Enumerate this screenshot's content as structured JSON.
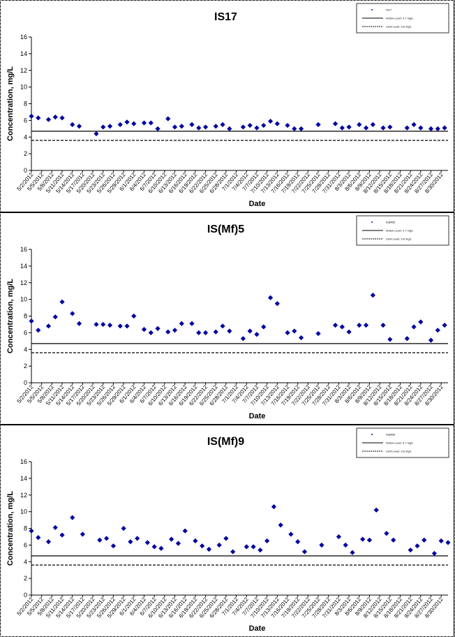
{
  "chart_data": [
    {
      "type": "scatter",
      "title": "IS17",
      "xlabel": "Date",
      "ylabel": "Concentration, mg/L",
      "ylim": [
        0,
        16
      ],
      "yticks": [
        0,
        2,
        4,
        6,
        8,
        10,
        12,
        14,
        16
      ],
      "x_tick_labels": [
        "5/2/2012",
        "5/5/2012",
        "5/8/2012",
        "5/11/2012",
        "5/14/2012",
        "5/17/2012",
        "5/20/2012",
        "5/23/2012",
        "5/26/2012",
        "5/29/2012",
        "6/1/2012",
        "6/4/2012",
        "6/7/2012",
        "6/10/2012",
        "6/13/2012",
        "6/16/2012",
        "6/19/2012",
        "6/22/2012",
        "6/25/2012",
        "6/28/2012",
        "7/1/2012",
        "7/4/2012",
        "7/7/2012",
        "7/10/2012",
        "7/13/2012",
        "7/16/2012",
        "7/19/2012",
        "7/22/2012",
        "7/25/2012",
        "7/28/2012",
        "7/31/2012",
        "8/3/2012",
        "8/6/2012",
        "8/9/2012",
        "8/12/2012",
        "8/15/2012",
        "8/18/2012",
        "8/21/2012",
        "8/24/2012",
        "8/27/2012",
        "8/30/2012"
      ],
      "x_range": [
        "2012-05-02",
        "2012-09-01"
      ],
      "series": [
        {
          "name": "IS17",
          "color": "#0000A0",
          "marker": "diamond",
          "points": [
            [
              "2012-05-02",
              6.5
            ],
            [
              "2012-05-04",
              6.3
            ],
            [
              "2012-05-07",
              6.1
            ],
            [
              "2012-05-09",
              6.4
            ],
            [
              "2012-05-11",
              6.3
            ],
            [
              "2012-05-14",
              5.5
            ],
            [
              "2012-05-16",
              5.3
            ],
            [
              "2012-05-21",
              4.4
            ],
            [
              "2012-05-23",
              5.2
            ],
            [
              "2012-05-25",
              5.3
            ],
            [
              "2012-05-28",
              5.5
            ],
            [
              "2012-05-30",
              5.8
            ],
            [
              "2012-06-01",
              5.6
            ],
            [
              "2012-06-04",
              5.7
            ],
            [
              "2012-06-06",
              5.7
            ],
            [
              "2012-06-08",
              5.0
            ],
            [
              "2012-06-11",
              6.2
            ],
            [
              "2012-06-13",
              5.2
            ],
            [
              "2012-06-15",
              5.3
            ],
            [
              "2012-06-18",
              5.5
            ],
            [
              "2012-06-20",
              5.1
            ],
            [
              "2012-06-22",
              5.2
            ],
            [
              "2012-06-25",
              5.3
            ],
            [
              "2012-06-27",
              5.5
            ],
            [
              "2012-06-29",
              5.0
            ],
            [
              "2012-07-03",
              5.2
            ],
            [
              "2012-07-05",
              5.4
            ],
            [
              "2012-07-07",
              5.1
            ],
            [
              "2012-07-09",
              5.4
            ],
            [
              "2012-07-11",
              5.9
            ],
            [
              "2012-07-13",
              5.6
            ],
            [
              "2012-07-16",
              5.4
            ],
            [
              "2012-07-18",
              5.0
            ],
            [
              "2012-07-20",
              5.0
            ],
            [
              "2012-07-25",
              5.5
            ],
            [
              "2012-07-30",
              5.6
            ],
            [
              "2012-08-01",
              5.1
            ],
            [
              "2012-08-03",
              5.2
            ],
            [
              "2012-08-06",
              5.5
            ],
            [
              "2012-08-08",
              5.1
            ],
            [
              "2012-08-10",
              5.5
            ],
            [
              "2012-08-13",
              5.1
            ],
            [
              "2012-08-15",
              5.2
            ],
            [
              "2012-08-20",
              5.1
            ],
            [
              "2012-08-22",
              5.5
            ],
            [
              "2012-08-24",
              5.1
            ],
            [
              "2012-08-27",
              5.0
            ],
            [
              "2012-08-29",
              5.0
            ],
            [
              "2012-08-31",
              5.1
            ]
          ]
        }
      ],
      "reference_lines": [
        {
          "name": "Action Level: 4.7 mg/L",
          "value": 4.7,
          "style": "solid"
        },
        {
          "name": "Limit Level: 3.6 mg/L",
          "value": 3.6,
          "style": "dashed"
        }
      ],
      "legend_position": "top-right",
      "grid": false
    },
    {
      "type": "scatter",
      "title": "IS(Mf)5",
      "xlabel": "Date",
      "ylabel": "Concentration, mg/L",
      "ylim": [
        0,
        16
      ],
      "yticks": [
        0,
        2,
        4,
        6,
        8,
        10,
        12,
        14,
        16
      ],
      "x_tick_labels": [
        "5/2/2012",
        "5/5/2012",
        "5/8/2012",
        "5/11/2012",
        "5/14/2012",
        "5/17/2012",
        "5/20/2012",
        "5/23/2012",
        "5/26/2012",
        "5/29/2012",
        "6/1/2012",
        "6/4/2012",
        "6/7/2012",
        "6/10/2012",
        "6/13/2012",
        "6/16/2012",
        "6/19/2012",
        "6/22/2012",
        "6/25/2012",
        "6/28/2012",
        "7/1/2012",
        "7/4/2012",
        "7/7/2012",
        "7/10/2012",
        "7/13/2012",
        "7/16/2012",
        "7/19/2012",
        "7/22/2012",
        "7/25/2012",
        "7/28/2012",
        "7/31/2012",
        "8/3/2012",
        "8/6/2012",
        "8/9/2012",
        "8/12/2012",
        "8/15/2012",
        "8/18/2012",
        "8/21/2012",
        "8/24/2012",
        "8/27/2012",
        "8/30/2012"
      ],
      "x_range": [
        "2012-05-02",
        "2012-09-01"
      ],
      "series": [
        {
          "name": "IS(Mf)5",
          "color": "#0000A0",
          "marker": "diamond",
          "points": [
            [
              "2012-05-02",
              7.4
            ],
            [
              "2012-05-04",
              6.3
            ],
            [
              "2012-05-07",
              6.8
            ],
            [
              "2012-05-09",
              7.9
            ],
            [
              "2012-05-11",
              9.7
            ],
            [
              "2012-05-14",
              8.3
            ],
            [
              "2012-05-16",
              7.1
            ],
            [
              "2012-05-21",
              7.0
            ],
            [
              "2012-05-23",
              7.0
            ],
            [
              "2012-05-25",
              6.9
            ],
            [
              "2012-05-28",
              6.8
            ],
            [
              "2012-05-30",
              6.8
            ],
            [
              "2012-06-01",
              8.0
            ],
            [
              "2012-06-04",
              6.4
            ],
            [
              "2012-06-06",
              6.0
            ],
            [
              "2012-06-08",
              6.5
            ],
            [
              "2012-06-11",
              6.1
            ],
            [
              "2012-06-13",
              6.3
            ],
            [
              "2012-06-15",
              7.1
            ],
            [
              "2012-06-18",
              7.1
            ],
            [
              "2012-06-20",
              6.0
            ],
            [
              "2012-06-22",
              6.0
            ],
            [
              "2012-06-25",
              6.1
            ],
            [
              "2012-06-27",
              6.8
            ],
            [
              "2012-06-29",
              6.2
            ],
            [
              "2012-07-03",
              5.3
            ],
            [
              "2012-07-05",
              6.2
            ],
            [
              "2012-07-07",
              5.8
            ],
            [
              "2012-07-09",
              6.7
            ],
            [
              "2012-07-11",
              10.2
            ],
            [
              "2012-07-13",
              9.5
            ],
            [
              "2012-07-16",
              6.0
            ],
            [
              "2012-07-18",
              6.2
            ],
            [
              "2012-07-20",
              5.4
            ],
            [
              "2012-07-25",
              5.9
            ],
            [
              "2012-07-30",
              6.9
            ],
            [
              "2012-08-01",
              6.7
            ],
            [
              "2012-08-03",
              6.1
            ],
            [
              "2012-08-06",
              6.9
            ],
            [
              "2012-08-08",
              6.9
            ],
            [
              "2012-08-10",
              10.5
            ],
            [
              "2012-08-13",
              6.9
            ],
            [
              "2012-08-15",
              5.2
            ],
            [
              "2012-08-20",
              5.3
            ],
            [
              "2012-08-22",
              6.7
            ],
            [
              "2012-08-24",
              7.3
            ],
            [
              "2012-08-27",
              5.1
            ],
            [
              "2012-08-29",
              6.3
            ],
            [
              "2012-08-31",
              6.9
            ]
          ]
        }
      ],
      "reference_lines": [
        {
          "name": "Action Level: 4.7 mg/L",
          "value": 4.7,
          "style": "solid"
        },
        {
          "name": "Limit Level: 3.6 mg/L",
          "value": 3.6,
          "style": "dashed"
        }
      ],
      "legend_position": "top-right",
      "grid": false
    },
    {
      "type": "scatter",
      "title": "IS(Mf)9",
      "xlabel": "Date",
      "ylabel": "Concentration, mg/L",
      "ylim": [
        0,
        16
      ],
      "yticks": [
        0,
        2,
        4,
        6,
        8,
        10,
        12,
        14,
        16
      ],
      "x_tick_labels": [
        "5/2/2012",
        "5/5/2012",
        "5/8/2012",
        "5/11/2012",
        "5/14/2012",
        "5/17/2012",
        "5/20/2012",
        "5/23/2012",
        "5/26/2012",
        "5/29/2012",
        "6/1/2012",
        "6/4/2012",
        "6/7/2012",
        "6/10/2012",
        "6/13/2012",
        "6/16/2012",
        "6/19/2012",
        "6/22/2012",
        "6/25/2012",
        "6/28/2012",
        "7/1/2012",
        "7/4/2012",
        "7/7/2012",
        "7/10/2012",
        "7/13/2012",
        "7/16/2012",
        "7/19/2012",
        "7/22/2012",
        "7/25/2012",
        "7/28/2012",
        "7/31/2012",
        "8/3/2012",
        "8/6/2012",
        "8/9/2012",
        "8/12/2012",
        "8/15/2012",
        "8/18/2012",
        "8/21/2012",
        "8/24/2012",
        "8/27/2012",
        "8/30/2012"
      ],
      "x_range": [
        "2012-05-02",
        "2012-09-01"
      ],
      "series": [
        {
          "name": "IS(Mf)9",
          "color": "#0000A0",
          "marker": "diamond",
          "points": [
            [
              "2012-05-02",
              7.7
            ],
            [
              "2012-05-04",
              6.9
            ],
            [
              "2012-05-07",
              6.4
            ],
            [
              "2012-05-09",
              8.1
            ],
            [
              "2012-05-11",
              7.2
            ],
            [
              "2012-05-14",
              9.3
            ],
            [
              "2012-05-17",
              7.3
            ],
            [
              "2012-05-22",
              6.6
            ],
            [
              "2012-05-24",
              6.8
            ],
            [
              "2012-05-26",
              5.9
            ],
            [
              "2012-05-29",
              8.0
            ],
            [
              "2012-05-31",
              6.4
            ],
            [
              "2012-06-02",
              6.8
            ],
            [
              "2012-06-05",
              6.3
            ],
            [
              "2012-06-07",
              5.8
            ],
            [
              "2012-06-09",
              5.6
            ],
            [
              "2012-06-12",
              6.7
            ],
            [
              "2012-06-14",
              6.2
            ],
            [
              "2012-06-16",
              7.7
            ],
            [
              "2012-06-19",
              6.5
            ],
            [
              "2012-06-21",
              5.9
            ],
            [
              "2012-06-23",
              5.5
            ],
            [
              "2012-06-26",
              6.0
            ],
            [
              "2012-06-28",
              6.8
            ],
            [
              "2012-06-30",
              5.2
            ],
            [
              "2012-07-04",
              5.8
            ],
            [
              "2012-07-06",
              5.8
            ],
            [
              "2012-07-08",
              5.4
            ],
            [
              "2012-07-10",
              6.5
            ],
            [
              "2012-07-12",
              10.6
            ],
            [
              "2012-07-14",
              8.4
            ],
            [
              "2012-07-17",
              7.3
            ],
            [
              "2012-07-19",
              6.4
            ],
            [
              "2012-07-21",
              5.2
            ],
            [
              "2012-07-26",
              6.0
            ],
            [
              "2012-07-31",
              7.0
            ],
            [
              "2012-08-02",
              6.0
            ],
            [
              "2012-08-04",
              5.1
            ],
            [
              "2012-08-07",
              6.7
            ],
            [
              "2012-08-09",
              6.6
            ],
            [
              "2012-08-11",
              10.2
            ],
            [
              "2012-08-14",
              7.4
            ],
            [
              "2012-08-16",
              6.6
            ],
            [
              "2012-08-21",
              5.4
            ],
            [
              "2012-08-23",
              5.9
            ],
            [
              "2012-08-25",
              6.6
            ],
            [
              "2012-08-28",
              5.0
            ],
            [
              "2012-08-30",
              6.5
            ],
            [
              "2012-09-01",
              6.3
            ]
          ]
        }
      ],
      "reference_lines": [
        {
          "name": "Action Level: 4.7 mg/L",
          "value": 4.7,
          "style": "solid"
        },
        {
          "name": "Limit Level: 3.6 mg/L",
          "value": 3.6,
          "style": "dashed"
        }
      ],
      "legend_position": "top-right",
      "grid": false
    }
  ]
}
